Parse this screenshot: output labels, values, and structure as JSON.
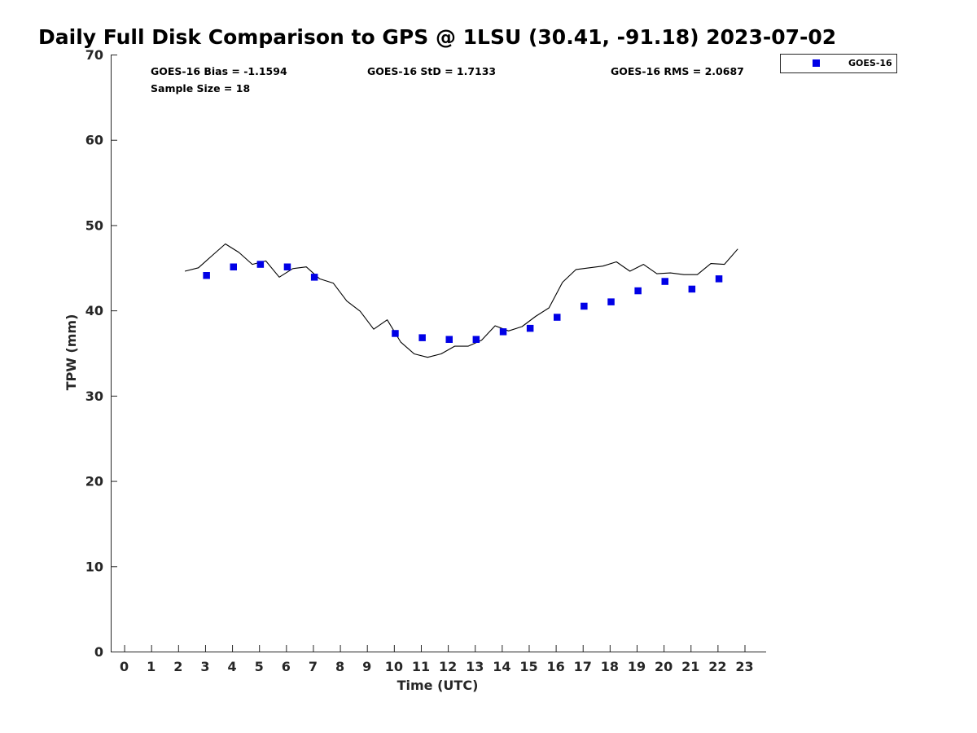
{
  "chart_data": {
    "type": "scatter",
    "title": "Daily Full Disk Comparison to GPS @ 1LSU (30.41, -91.18) 2023-07-02",
    "xlabel": "Time (UTC)",
    "ylabel": "TPW (mm)",
    "xlim": [
      -0.5,
      23.8
    ],
    "ylim": [
      0,
      70
    ],
    "x_ticks": [
      "0",
      "1",
      "2",
      "3",
      "4",
      "5",
      "6",
      "7",
      "8",
      "9",
      "10",
      "11",
      "12",
      "13",
      "14",
      "15",
      "16",
      "17",
      "18",
      "19",
      "20",
      "21",
      "22",
      "23"
    ],
    "y_ticks": [
      "0",
      "10",
      "20",
      "30",
      "40",
      "50",
      "60",
      "70"
    ],
    "grid": false,
    "legend_position": "top-right",
    "stats": {
      "bias": "GOES-16 Bias = -1.1594",
      "std": "GOES-16 StD = 1.7133",
      "rms": "GOES-16 RMS = 2.0687",
      "sample": "Sample Size = 18"
    },
    "series": [
      {
        "name": "GOES-16",
        "kind": "markers",
        "color": "#0000e6",
        "x": [
          3.05,
          4.05,
          5.05,
          6.05,
          7.05,
          10.05,
          11.05,
          12.05,
          13.05,
          14.05,
          15.05,
          16.05,
          17.05,
          18.05,
          19.05,
          20.05,
          21.05,
          22.05
        ],
        "y": [
          44.1,
          45.1,
          45.4,
          45.1,
          43.9,
          37.3,
          36.8,
          36.6,
          36.6,
          37.5,
          37.9,
          39.2,
          40.5,
          41.0,
          42.3,
          43.4,
          42.5,
          43.7
        ]
      },
      {
        "kind": "line",
        "color": "#000000",
        "x": [
          2.25,
          2.75,
          3.25,
          3.75,
          4.25,
          4.75,
          5.25,
          5.75,
          6.25,
          6.75,
          7.25,
          7.75,
          8.25,
          8.75,
          9.25,
          9.75,
          10.25,
          10.75,
          11.25,
          11.75,
          12.25,
          12.75,
          13.25,
          13.75,
          14.25,
          14.75,
          15.25,
          15.75,
          16.25,
          16.75,
          17.25,
          17.75,
          18.25,
          18.75,
          19.25,
          19.75,
          20.25,
          20.75,
          21.25,
          21.75,
          22.25,
          22.75
        ],
        "y": [
          44.6,
          45.0,
          46.4,
          47.8,
          46.8,
          45.4,
          45.8,
          43.9,
          44.9,
          45.1,
          43.7,
          43.2,
          41.1,
          39.9,
          37.8,
          38.9,
          36.3,
          34.9,
          34.5,
          34.9,
          35.8,
          35.8,
          36.5,
          38.2,
          37.6,
          38.1,
          39.3,
          40.3,
          43.3,
          44.8,
          45.0,
          45.2,
          45.7,
          44.6,
          45.4,
          44.3,
          44.4,
          44.2,
          44.2,
          45.5,
          45.4,
          47.2
        ]
      }
    ]
  }
}
